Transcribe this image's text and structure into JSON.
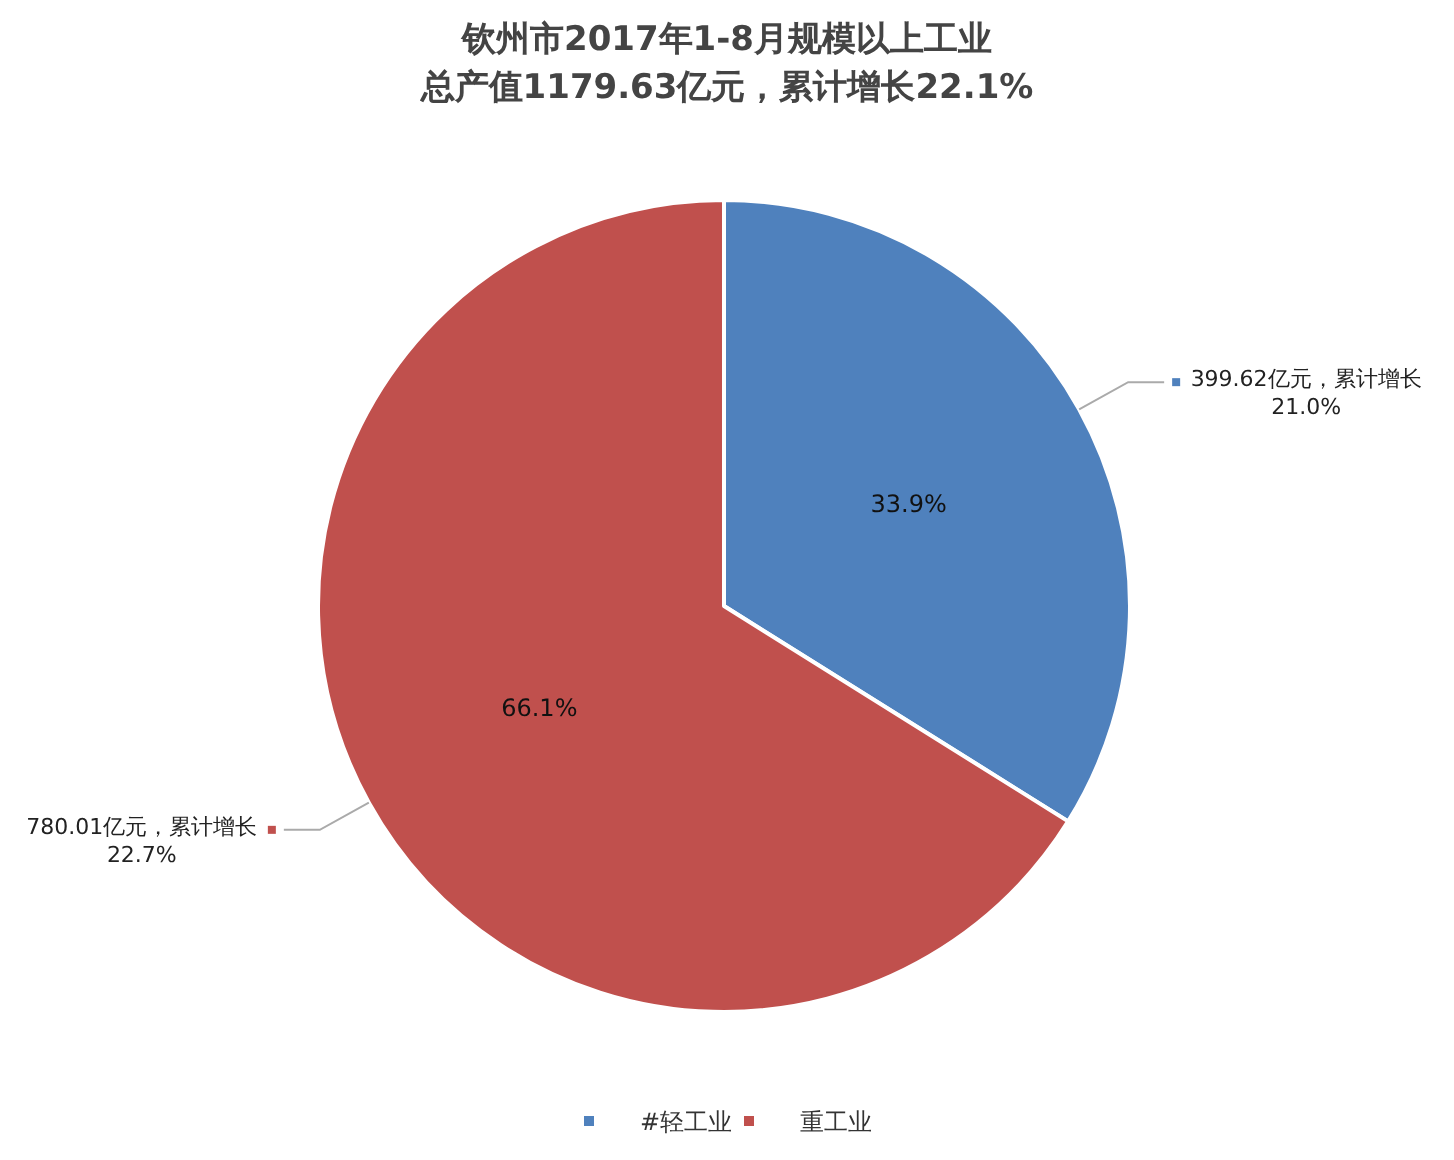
{
  "chart_data": {
    "type": "pie",
    "title": "钦州市2017年1-8月规模以上工业",
    "subtitle": "总产值1179.63亿元，累计增长22.1%",
    "categories": [
      "#轻工业",
      "重工业"
    ],
    "values": [
      33.9,
      66.1
    ],
    "value_labels": [
      "33.9%",
      "66.1%"
    ],
    "colors": [
      "#4f81bd",
      "#c0504d"
    ],
    "annotations": [
      {
        "text": "399.62亿元，累计增长21.0%",
        "x": "#轻工业"
      },
      {
        "text": "780.01亿元，累计增长22.7%",
        "x": "重工业"
      }
    ],
    "legend": "bottom"
  }
}
